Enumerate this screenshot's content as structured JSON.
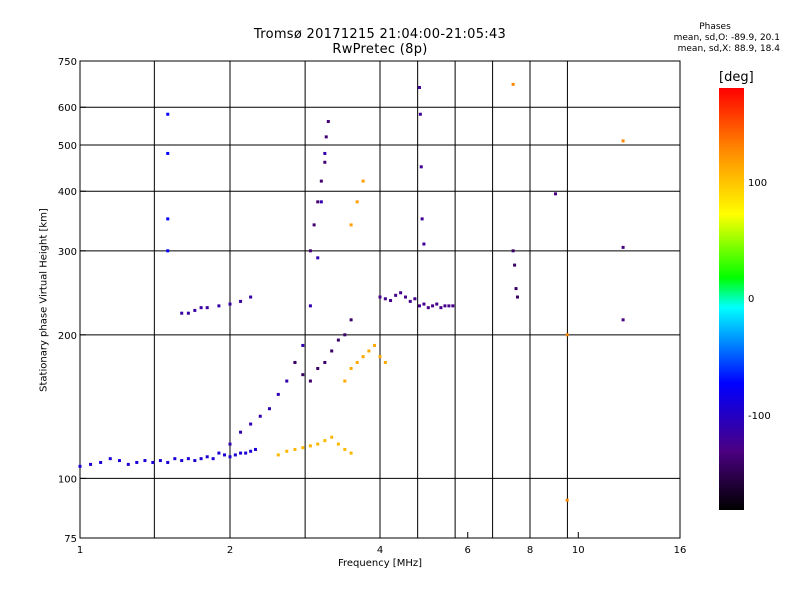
{
  "header": {
    "title_line1": "Tromsø 20171215 21:04:00-21:05:43",
    "title_line2": "RwPretec (8p)"
  },
  "stats": {
    "title": "Phases",
    "line_o": "mean, sd,O: -89.9, 20.1",
    "line_x": "mean, sd,X:  88.9, 18.4"
  },
  "colorbar": {
    "unit": "[deg]",
    "ticks": [
      "100",
      "0",
      "-100"
    ],
    "tick_values": [
      100,
      0,
      -100
    ],
    "range": [
      -180,
      180
    ],
    "colors": [
      "#000000",
      "#4b0082",
      "#0000ff",
      "#00ffff",
      "#00ff00",
      "#ffff00",
      "#ff8c00",
      "#ff0000"
    ]
  },
  "chart_data": {
    "type": "scatter",
    "title": "Tromsø 20171215 21:04:00-21:05:43",
    "subtitle": "RwPretec (8p)",
    "xlabel": "Frequency [MHz]",
    "ylabel": "Stationary phase Virtual Height [km]",
    "x_scale": "log",
    "y_scale": "log",
    "xlim": [
      1,
      16
    ],
    "ylim": [
      75,
      750
    ],
    "x_ticks": [
      1,
      2,
      4,
      6,
      8,
      10,
      16
    ],
    "x_tick_labels": [
      "1",
      "2",
      "4",
      "6",
      "8",
      "10",
      "16"
    ],
    "y_ticks": [
      75,
      100,
      200,
      300,
      400,
      500,
      600,
      750
    ],
    "y_tick_labels": [
      "75",
      "100",
      "200",
      "300",
      "400",
      "500",
      "600",
      "750"
    ],
    "x_gridlines": [
      1.41,
      2,
      2.83,
      4,
      4.76,
      5.66,
      6.73,
      8,
      9.51
    ],
    "y_gridlines": [
      100,
      200,
      300,
      400,
      500,
      600
    ],
    "grid": true,
    "color_variable": "phase [deg]",
    "series": [
      {
        "freq": [
          1.0,
          1.05,
          1.1,
          1.15,
          1.2,
          1.25,
          1.3,
          1.35,
          1.4,
          1.45,
          1.5,
          1.55,
          1.6,
          1.65,
          1.7,
          1.75,
          1.8,
          1.85,
          1.9,
          1.95,
          2.0,
          2.05,
          2.1,
          2.15,
          2.2,
          2.25
        ],
        "height": [
          106,
          107,
          108,
          110,
          109,
          107,
          108,
          109,
          108,
          109,
          108,
          110,
          109,
          110,
          109,
          110,
          111,
          110,
          113,
          112,
          111,
          112,
          113,
          113,
          114,
          115
        ],
        "phase": -95
      },
      {
        "freq": [
          2.0,
          2.1,
          2.2,
          2.3,
          2.4,
          2.5,
          2.6,
          2.7,
          2.8,
          2.9,
          3.0,
          3.05,
          3.1
        ],
        "height": [
          118,
          125,
          130,
          135,
          140,
          150,
          160,
          175,
          190,
          230,
          290,
          380,
          480
        ],
        "phase": -110
      },
      {
        "freq": [
          2.7,
          2.8,
          2.9,
          3.0,
          3.1,
          3.2,
          3.3,
          3.4,
          3.5
        ],
        "height": [
          175,
          165,
          160,
          170,
          175,
          185,
          195,
          200,
          215
        ],
        "phase": -140
      },
      {
        "freq": [
          2.9,
          2.95,
          3.0,
          3.05,
          3.1,
          3.12,
          3.15
        ],
        "height": [
          300,
          340,
          380,
          420,
          460,
          520,
          560
        ],
        "phase": -135
      },
      {
        "freq": [
          1.6,
          1.65,
          1.7,
          1.75,
          1.8,
          1.9,
          2.0,
          2.1,
          2.2
        ],
        "height": [
          222,
          222,
          225,
          228,
          228,
          230,
          232,
          235,
          240
        ],
        "phase": -115
      },
      {
        "freq": [
          2.5,
          2.6,
          2.7,
          2.8,
          2.9,
          3.0,
          3.1,
          3.2,
          3.3,
          3.4,
          3.5
        ],
        "height": [
          112,
          114,
          115,
          116,
          117,
          118,
          120,
          122,
          118,
          115,
          113
        ],
        "phase": 110
      },
      {
        "freq": [
          3.4,
          3.5,
          3.6,
          3.7,
          3.8,
          3.9,
          4.0,
          4.1
        ],
        "height": [
          160,
          170,
          175,
          180,
          185,
          190,
          180,
          175
        ],
        "phase": 115
      },
      {
        "freq": [
          3.5,
          3.6,
          3.7
        ],
        "height": [
          340,
          380,
          420
        ],
        "phase": 120
      },
      {
        "freq": [
          4.0,
          4.1,
          4.2,
          4.3,
          4.4,
          4.5,
          4.6,
          4.7,
          4.8,
          4.9,
          5.0,
          5.1,
          5.2,
          5.3,
          5.4,
          5.5,
          5.6
        ],
        "height": [
          240,
          238,
          236,
          242,
          245,
          240,
          235,
          238,
          230,
          232,
          228,
          230,
          232,
          228,
          230,
          230,
          230
        ],
        "phase": -125
      },
      {
        "freq": [
          4.8,
          4.82,
          4.84,
          4.86,
          4.9
        ],
        "height": [
          660,
          580,
          450,
          350,
          310
        ],
        "phase": -120
      },
      {
        "freq": [
          7.4,
          7.45,
          7.5,
          7.55
        ],
        "height": [
          300,
          280,
          250,
          240
        ],
        "phase": -140
      },
      {
        "freq": [
          1.5,
          1.5,
          1.5,
          1.5
        ],
        "height": [
          580,
          480,
          350,
          300
        ],
        "phase": -80
      },
      {
        "freq": [
          9.0,
          12.3,
          12.3
        ],
        "height": [
          395,
          305,
          215
        ],
        "phase": -130
      },
      {
        "freq": [
          7.4,
          9.5,
          9.5,
          12.3
        ],
        "height": [
          670,
          200,
          90,
          510
        ],
        "phase": 130
      }
    ]
  }
}
